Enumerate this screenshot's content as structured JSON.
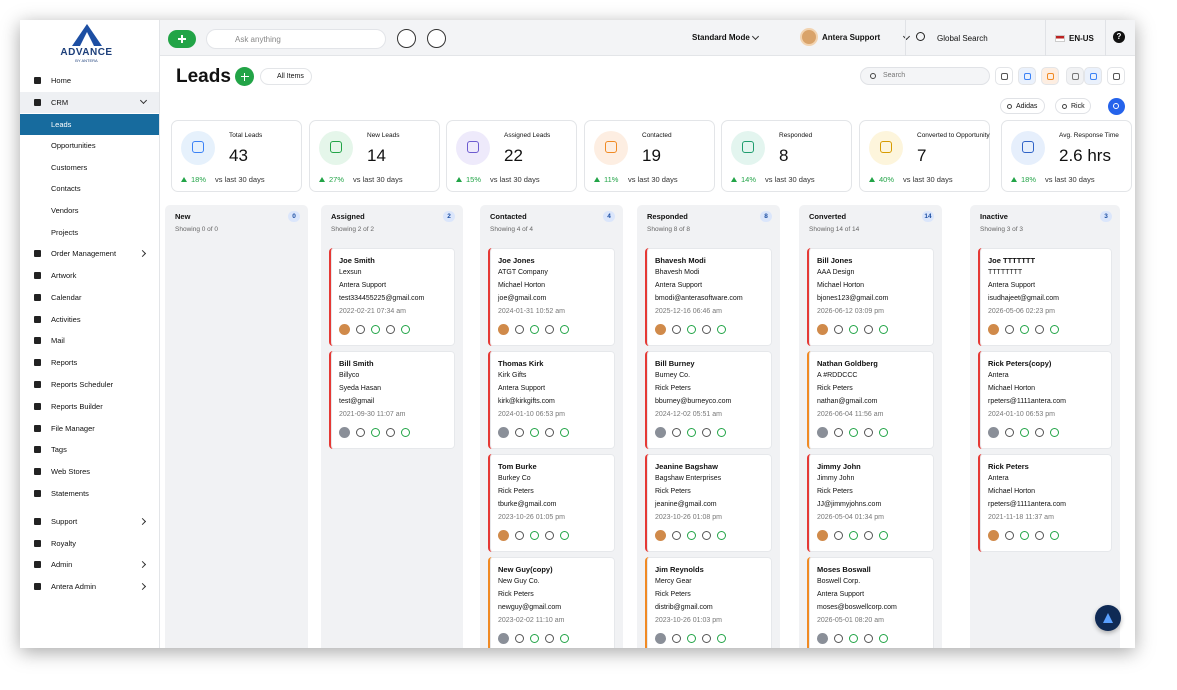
{
  "logo": {
    "name": "ADVANCE",
    "tagline": "BY ANTERA"
  },
  "sidebar": [
    [
      {
        "label": "Home"
      },
      {
        "label": "CRM",
        "open": true,
        "active_child": 0,
        "children": [
          "Leads",
          "Opportunities",
          "Customers",
          "Contacts",
          "Vendors",
          "Projects"
        ]
      },
      {
        "label": "Order Management",
        "arrow": true
      },
      {
        "label": "Artwork"
      },
      {
        "label": "Calendar"
      },
      {
        "label": "Activities"
      },
      {
        "label": "Mail"
      },
      {
        "label": "Reports"
      },
      {
        "label": "Reports Scheduler"
      },
      {
        "label": "Reports Builder"
      },
      {
        "label": "File Manager"
      },
      {
        "label": "Tags"
      },
      {
        "label": "Web Stores"
      },
      {
        "label": "Statements"
      }
    ],
    [
      {
        "label": "Support",
        "arrow": true
      },
      {
        "label": "Royalty"
      },
      {
        "label": "Admin",
        "arrow": true
      },
      {
        "label": "Antera Admin",
        "arrow": true
      }
    ]
  ],
  "topbar": {
    "ask_placeholder": "Ask anything",
    "mode": "Standard Mode",
    "user": "Antera Support",
    "global_search": "Global Search",
    "locale": "EN-US",
    "help": "?"
  },
  "header": {
    "title": "Leads",
    "view": "All Items",
    "search_placeholder": "Search",
    "filters": [
      "Adidas",
      "Rick"
    ]
  },
  "stats": [
    {
      "label": "Total Leads",
      "value": 43,
      "change": "18%",
      "compare": "vs last 30 days",
      "color": "#e6f1fc",
      "icon_color": "#3b82f6"
    },
    {
      "label": "New Leads",
      "value": 14,
      "change": "27%",
      "compare": "vs last 30 days",
      "color": "#e5f6ea",
      "icon_color": "#22a447"
    },
    {
      "label": "Assigned Leads",
      "value": 22,
      "change": "15%",
      "compare": "vs last 30 days",
      "color": "#eeeafb",
      "icon_color": "#6d5bd0"
    },
    {
      "label": "Contacted",
      "value": 19,
      "change": "11%",
      "compare": "vs last 30 days",
      "color": "#fdeee2",
      "icon_color": "#f08a24"
    },
    {
      "label": "Responded",
      "value": 8,
      "change": "14%",
      "compare": "vs last 30 days",
      "color": "#e3f5ef",
      "icon_color": "#1f9d6e"
    },
    {
      "label": "Converted to Opportunity",
      "value": 7,
      "change": "40%",
      "compare": "vs last 30 days",
      "color": "#fdf5dc",
      "icon_color": "#d79b00"
    },
    {
      "label": "Avg. Response Time",
      "value": "2.6 hrs",
      "change": "18%",
      "compare": "vs last 30 days",
      "color": "#e6effc",
      "icon_color": "#2f63c7"
    }
  ],
  "board": {
    "columns": [
      {
        "name": "New",
        "count": 0,
        "showing": "Showing 0 of 0",
        "cards": []
      },
      {
        "name": "Assigned",
        "count": 2,
        "showing": "Showing 2 of 2",
        "cards": [
          {
            "name": "Joe Smith",
            "company": "Lexsun",
            "owner": "Antera Support",
            "email": "test334455225@gmail.com",
            "date": "2022-02-21 07:34 am",
            "color": "#e53935"
          },
          {
            "name": "Bill Smith",
            "company": "Billyco",
            "owner": "Syeda Hasan",
            "email": "test@gmail",
            "date": "2021-09-30 11:07 am",
            "color": "#e53935"
          }
        ]
      },
      {
        "name": "Contacted",
        "count": 4,
        "showing": "Showing 4 of 4",
        "cards": [
          {
            "name": "Joe Jones",
            "company": "ATGT Company",
            "owner": "Michael Horton",
            "email": "joe@gmail.com",
            "date": "2024-01-31 10:52 am",
            "color": "#e53935"
          },
          {
            "name": "Thomas Kirk",
            "company": "Kirk Gifts",
            "owner": "Antera Support",
            "email": "kirk@kirkgifts.com",
            "date": "2024-01-10 06:53 pm",
            "color": "#e53935"
          },
          {
            "name": "Tom Burke",
            "company": "Burkey Co",
            "owner": "Rick Peters",
            "email": "tburke@gmail.com",
            "date": "2023-10-26 01:05 pm",
            "color": "#e53935"
          },
          {
            "name": "New Guy(copy)",
            "company": "New Guy Co.",
            "owner": "Rick Peters",
            "email": "newguy@gmail.com",
            "date": "2023-02-02 11:10 am",
            "color": "#f08a24"
          }
        ]
      },
      {
        "name": "Responded",
        "count": 8,
        "showing": "Showing 8 of 8",
        "cards": [
          {
            "name": "Bhavesh Modi",
            "company": "Bhavesh Modi",
            "owner": "Antera Support",
            "email": "bmodi@anterasoftware.com",
            "date": "2025-12-16 06:46 am",
            "color": "#e53935"
          },
          {
            "name": "Bill Burney",
            "company": "Burney Co.",
            "owner": "Rick Peters",
            "email": "bburney@burneyco.com",
            "date": "2024-12-02 05:51 am",
            "color": "#e53935"
          },
          {
            "name": "Jeanine Bagshaw",
            "company": "Bagshaw Enterprises",
            "owner": "Rick Peters",
            "email": "jeanine@gmail.com",
            "date": "2023-10-26 01:08 pm",
            "color": "#e53935"
          },
          {
            "name": "Jim Reynolds",
            "company": "Mercy Gear",
            "owner": "Rick Peters",
            "email": "distrib@gmail.com",
            "date": "2023-10-26 01:03 pm",
            "color": "#f08a24"
          }
        ]
      },
      {
        "name": "Converted",
        "count": 14,
        "showing": "Showing 14 of 14",
        "cards": [
          {
            "name": "Bill Jones",
            "company": "AAA Design",
            "owner": "Michael Horton",
            "email": "bjones123@gmail.com",
            "date": "2026-06-12 03:09 pm",
            "color": "#e53935"
          },
          {
            "name": "Nathan Goldberg",
            "company": "A #RDDCCC",
            "owner": "Rick Peters",
            "email": "nathan@gmail.com",
            "date": "2026-06-04 11:56 am",
            "color": "#f08a24"
          },
          {
            "name": "Jimmy John",
            "company": "Jimmy John",
            "owner": "Rick Peters",
            "email": "JJ@jimmyjohns.com",
            "date": "2026-05-04 01:34 pm",
            "color": "#e53935"
          },
          {
            "name": "Moses Boswall",
            "company": "Boswell Corp.",
            "owner": "Antera Support",
            "email": "moses@boswellcorp.com",
            "date": "2026-05-01 08:20 am",
            "color": "#f08a24"
          }
        ]
      },
      {
        "name": "Inactive",
        "count": 3,
        "showing": "Showing 3 of 3",
        "cards": [
          {
            "name": "Joe TTTTTTT",
            "company": "TTTTTTTT",
            "owner": "Antera Support",
            "email": "isudhajeet@gmail.com",
            "date": "2026-05-06 02:23 pm",
            "color": "#e53935"
          },
          {
            "name": "Rick Peters(copy)",
            "company": "Antera",
            "owner": "Michael Horton",
            "email": "rpeters@1111antera.com",
            "date": "2024-01-10 06:53 pm",
            "color": "#e53935"
          },
          {
            "name": "Rick Peters",
            "company": "Antera",
            "owner": "Michael Horton",
            "email": "rpeters@1111antera.com",
            "date": "2021-11-18 11:37 am",
            "color": "#e53935"
          }
        ]
      }
    ]
  }
}
